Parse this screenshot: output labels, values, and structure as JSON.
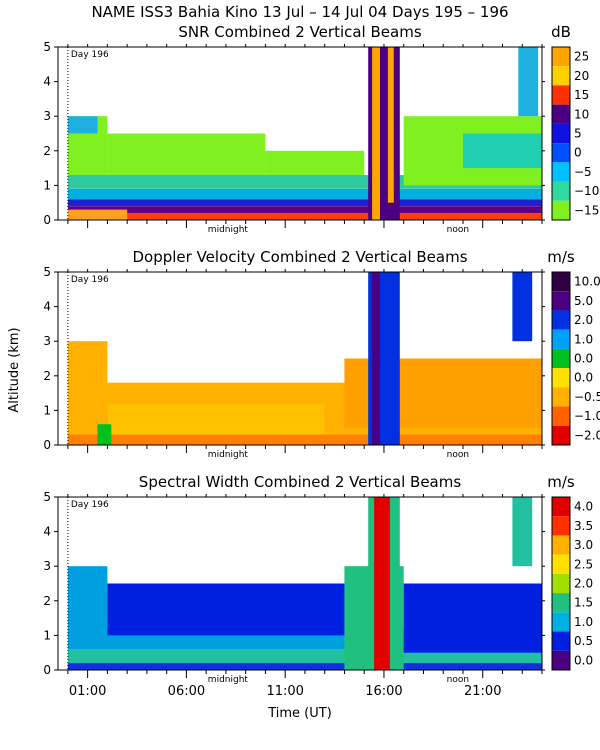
{
  "page": {
    "title": "NAME ISS3 Bahia Kino  13 Jul – 14 Jul 04 Days 195 – 196",
    "ylabel": "Altitude (km)",
    "xlabel": "Time (UT)",
    "x_ticks": [
      "01:00",
      "06:00",
      "11:00",
      "16:00",
      "21:00"
    ],
    "x_tick_hours": [
      1,
      6,
      11,
      16,
      21
    ],
    "markers": {
      "midnight": "midnight",
      "noon": "noon",
      "day_label": "Day 196"
    }
  },
  "colors": {
    "background": "#ffffff",
    "axis": "#000000",
    "day_line": "#000000"
  },
  "chart_data": [
    {
      "type": "heatmap",
      "title": "SNR Combined 2 Vertical Beams",
      "unit": "dB",
      "xlabel": "Time (UT)",
      "ylabel": "Altitude (km)",
      "xlim_hours": [
        -0.5,
        24.0
      ],
      "ylim": [
        0,
        5
      ],
      "y_ticks": [
        0,
        1,
        2,
        3,
        4,
        5
      ],
      "colorbar": {
        "ticks": [
          "25",
          "20",
          "15",
          "10",
          "5",
          "0",
          "−5",
          "−10",
          "−15"
        ],
        "colors": [
          "#ffa500",
          "#ffd000",
          "#ff3000",
          "#4b0082",
          "#1010e0",
          "#0050ff",
          "#00c0ff",
          "#30d8a0",
          "#80f020"
        ]
      },
      "cells": [
        [
          0.0,
          24.0,
          0.0,
          0.2,
          "#ff4000"
        ],
        [
          0.0,
          24.0,
          0.2,
          0.4,
          "#600080"
        ],
        [
          0.0,
          24.0,
          0.4,
          0.6,
          "#2020d0"
        ],
        [
          0.0,
          24.0,
          0.6,
          0.9,
          "#00b0e0"
        ],
        [
          0.0,
          24.0,
          0.9,
          1.3,
          "#30c8a0"
        ],
        [
          0.0,
          2.0,
          1.3,
          3.0,
          "#80f020"
        ],
        [
          0.0,
          1.5,
          2.5,
          3.0,
          "#20b0e0"
        ],
        [
          2.0,
          10.0,
          1.3,
          2.5,
          "#80f020"
        ],
        [
          10.0,
          15.0,
          1.3,
          2.0,
          "#80f020"
        ],
        [
          17.0,
          24.0,
          1.0,
          3.0,
          "#80f020"
        ],
        [
          20.0,
          24.0,
          1.5,
          2.5,
          "#20d0b0"
        ],
        [
          15.2,
          16.8,
          0.0,
          5.0,
          "#4b0082"
        ],
        [
          15.4,
          15.8,
          0.0,
          5.0,
          "#ffa500"
        ],
        [
          16.2,
          16.5,
          0.5,
          5.0,
          "#ffa500"
        ],
        [
          22.8,
          23.8,
          3.0,
          5.0,
          "#20b0e0"
        ],
        [
          0.0,
          3.0,
          0.0,
          0.3,
          "#ffa020"
        ]
      ]
    },
    {
      "type": "heatmap",
      "title": "Doppler Velocity Combined 2 Vertical Beams",
      "unit": "m/s",
      "xlabel": "Time (UT)",
      "ylabel": "Altitude (km)",
      "xlim_hours": [
        -0.5,
        24.0
      ],
      "ylim": [
        0,
        5
      ],
      "y_ticks": [
        0,
        1,
        2,
        3,
        4,
        5
      ],
      "colorbar": {
        "ticks": [
          "10.0",
          "5.0",
          "2.0",
          "1.0",
          "0.0",
          "0.0",
          "−0.5",
          "−1.0",
          "−2.0"
        ],
        "colors": [
          "#300040",
          "#4b0082",
          "#0030e0",
          "#00a0ff",
          "#00c020",
          "#ffe000",
          "#ffb000",
          "#ff6000",
          "#e00000"
        ]
      },
      "cells": [
        [
          0.0,
          24.0,
          0.0,
          1.8,
          "#ffb000"
        ],
        [
          0.0,
          2.0,
          1.0,
          3.0,
          "#ffb000"
        ],
        [
          2.0,
          13.0,
          0.0,
          1.2,
          "#ffc000"
        ],
        [
          14.0,
          24.0,
          0.5,
          2.5,
          "#ffa000"
        ],
        [
          0.0,
          24.0,
          0.0,
          0.3,
          "#ff8000"
        ],
        [
          15.2,
          16.8,
          0.0,
          5.0,
          "#0030e0"
        ],
        [
          15.4,
          15.8,
          0.0,
          5.0,
          "#4b0082"
        ],
        [
          22.5,
          23.5,
          3.0,
          5.0,
          "#0030e0"
        ],
        [
          1.5,
          2.2,
          0.0,
          0.6,
          "#00c020"
        ]
      ]
    },
    {
      "type": "heatmap",
      "title": "Spectral Width Combined 2 Vertical Beams",
      "unit": "m/s",
      "xlabel": "Time (UT)",
      "ylabel": "Altitude (km)",
      "xlim_hours": [
        -0.5,
        24.0
      ],
      "ylim": [
        0,
        5
      ],
      "y_ticks": [
        0,
        1,
        2,
        3,
        4,
        5
      ],
      "colorbar": {
        "ticks": [
          "4.0",
          "3.5",
          "3.0",
          "2.5",
          "2.0",
          "1.5",
          "1.0",
          "0.5",
          "0.0"
        ],
        "colors": [
          "#e00000",
          "#ff3000",
          "#ffb000",
          "#ffe000",
          "#a0e000",
          "#20c080",
          "#00b0e0",
          "#0020e0",
          "#4b0082"
        ]
      },
      "cells": [
        [
          0.0,
          24.0,
          0.0,
          0.6,
          "#20c0a0"
        ],
        [
          0.0,
          24.0,
          0.6,
          1.2,
          "#00a0e0"
        ],
        [
          0.0,
          24.0,
          0.0,
          0.2,
          "#1030e0"
        ],
        [
          0.0,
          2.0,
          1.0,
          3.0,
          "#00a0e0"
        ],
        [
          2.0,
          14.0,
          1.0,
          2.5,
          "#0020e0"
        ],
        [
          14.0,
          17.0,
          0.0,
          3.0,
          "#20c080"
        ],
        [
          15.2,
          16.8,
          0.0,
          5.0,
          "#20c080"
        ],
        [
          15.5,
          16.3,
          0.0,
          5.0,
          "#e00000"
        ],
        [
          17.0,
          24.0,
          0.5,
          2.5,
          "#0020e0"
        ],
        [
          22.5,
          23.5,
          3.0,
          5.0,
          "#20c0a0"
        ]
      ]
    }
  ]
}
